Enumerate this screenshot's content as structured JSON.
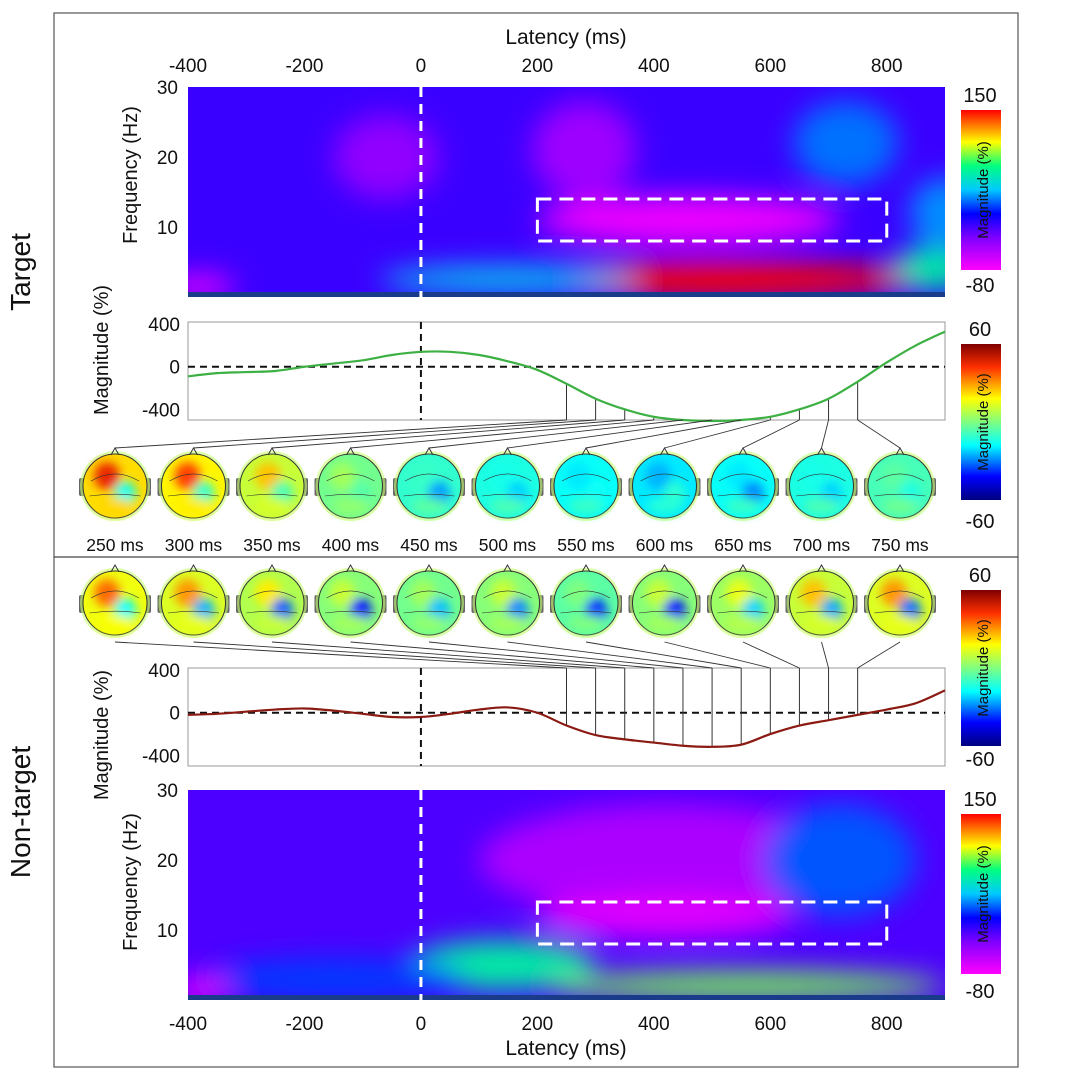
{
  "panels": {
    "target": {
      "label": "Target",
      "label_color": "#111111"
    },
    "nontarget": {
      "label": "Non-target",
      "label_color": "#111111"
    }
  },
  "chart_data": [
    {
      "id": "target-spectrogram",
      "type": "heatmap",
      "title": "",
      "xlabel": "Latency (ms)",
      "ylabel": "Frequency (Hz)",
      "xlim": [
        -400,
        900
      ],
      "ylim": [
        0,
        30
      ],
      "xticks": [
        -400,
        -200,
        0,
        200,
        400,
        600,
        800
      ],
      "yticks": [
        10,
        20,
        30
      ],
      "colorbar": {
        "label": "Magnitude (%)",
        "max_label": "150",
        "min_label": "-80",
        "range": [
          -80,
          150
        ]
      },
      "vline_at": 0,
      "roi": {
        "x": [
          200,
          800
        ],
        "y": [
          8,
          14
        ]
      },
      "blobs": [
        {
          "x": -60,
          "y": 20,
          "rx": 90,
          "ry": 6,
          "v": -40
        },
        {
          "x": 280,
          "y": 21,
          "rx": 90,
          "ry": 7,
          "v": -45
        },
        {
          "x": 460,
          "y": 11,
          "rx": 260,
          "ry": 3.5,
          "v": -75
        },
        {
          "x": 520,
          "y": 2.5,
          "rx": 330,
          "ry": 2.5,
          "v": 150
        },
        {
          "x": 150,
          "y": 2.5,
          "rx": 220,
          "ry": 1.8,
          "v": 40
        },
        {
          "x": -380,
          "y": 1.5,
          "rx": 60,
          "ry": 1.5,
          "v": -80
        },
        {
          "x": 730,
          "y": 22,
          "rx": 90,
          "ry": 6,
          "v": 20
        },
        {
          "x": 900,
          "y": 12,
          "rx": 60,
          "ry": 5,
          "v": 25
        },
        {
          "x": 880,
          "y": 4,
          "rx": 70,
          "ry": 3,
          "v": 60
        }
      ],
      "background_value": -15
    },
    {
      "id": "target-magnitude",
      "type": "line",
      "xlabel": "",
      "ylabel": "Magnitude (%)",
      "xlim": [
        -400,
        900
      ],
      "ylim": [
        -500,
        420
      ],
      "yticks": [
        400,
        0,
        -400
      ],
      "series": [
        {
          "name": "Target",
          "color": "#3cb043",
          "x": [
            -400,
            -350,
            -300,
            -250,
            -200,
            -150,
            -100,
            -50,
            0,
            50,
            100,
            150,
            200,
            250,
            300,
            350,
            400,
            450,
            500,
            550,
            600,
            650,
            700,
            750,
            800,
            850,
            900
          ],
          "y": [
            -90,
            -60,
            -50,
            -40,
            0,
            30,
            60,
            110,
            140,
            140,
            110,
            50,
            -30,
            -160,
            -300,
            -400,
            -470,
            -500,
            -510,
            -500,
            -470,
            -400,
            -300,
            -140,
            40,
            200,
            330
          ]
        }
      ],
      "marker_latencies": [
        250,
        300,
        350,
        400,
        450,
        500,
        550,
        600,
        650,
        700,
        750
      ],
      "colorbar": {
        "label": "Magnitude (%)",
        "max_label": "60",
        "min_label": "-60",
        "range": [
          -60,
          60
        ]
      }
    },
    {
      "id": "nontarget-magnitude",
      "type": "line",
      "xlabel": "",
      "ylabel": "Magnitude (%)",
      "xlim": [
        -400,
        900
      ],
      "ylim": [
        -500,
        420
      ],
      "yticks": [
        400,
        0,
        -400
      ],
      "series": [
        {
          "name": "Non-target",
          "color": "#8b1a12",
          "x": [
            -400,
            -350,
            -300,
            -250,
            -200,
            -150,
            -100,
            -50,
            0,
            50,
            100,
            150,
            200,
            250,
            300,
            350,
            400,
            450,
            500,
            550,
            600,
            650,
            700,
            750,
            800,
            850,
            900
          ],
          "y": [
            -20,
            -10,
            10,
            30,
            40,
            20,
            -10,
            -40,
            -40,
            -10,
            30,
            50,
            0,
            -120,
            -210,
            -250,
            -280,
            -310,
            -320,
            -300,
            -200,
            -120,
            -70,
            -20,
            30,
            90,
            210
          ]
        }
      ],
      "marker_latencies": [
        250,
        300,
        350,
        400,
        450,
        500,
        550,
        600,
        650,
        700,
        750
      ],
      "colorbar": {
        "label": "Magnitude (%)",
        "max_label": "60",
        "min_label": "-60",
        "range": [
          -60,
          60
        ]
      }
    },
    {
      "id": "nontarget-spectrogram",
      "type": "heatmap",
      "title": "",
      "xlabel": "Latency (ms)",
      "ylabel": "Frequency (Hz)",
      "xlim": [
        -400,
        900
      ],
      "ylim": [
        0,
        30
      ],
      "xticks": [
        -400,
        -200,
        0,
        200,
        400,
        600,
        800
      ],
      "yticks": [
        10,
        20,
        30
      ],
      "colorbar": {
        "label": "Magnitude (%)",
        "max_label": "150",
        "min_label": "-80",
        "range": [
          -80,
          150
        ]
      },
      "vline_at": 0,
      "roi": {
        "x": [
          200,
          800
        ],
        "y": [
          8,
          14
        ]
      },
      "blobs": [
        {
          "x": 420,
          "y": 20,
          "rx": 320,
          "ry": 8,
          "v": -50
        },
        {
          "x": 420,
          "y": 12,
          "rx": 220,
          "ry": 3,
          "v": -70
        },
        {
          "x": 140,
          "y": 5,
          "rx": 160,
          "ry": 3.5,
          "v": 60
        },
        {
          "x": 560,
          "y": 2,
          "rx": 340,
          "ry": 2,
          "v": 85
        },
        {
          "x": -150,
          "y": 3,
          "rx": 220,
          "ry": 3,
          "v": 10
        },
        {
          "x": -380,
          "y": 1.5,
          "rx": 50,
          "ry": 1.5,
          "v": -80
        },
        {
          "x": 720,
          "y": 20,
          "rx": 130,
          "ry": 8,
          "v": 15
        }
      ],
      "background_value": -20
    },
    {
      "id": "topomaps",
      "type": "table",
      "latency_labels": [
        "250 ms",
        "300 ms",
        "350 ms",
        "400 ms",
        "450 ms",
        "500 ms",
        "550 ms",
        "600 ms",
        "650 ms",
        "700 ms",
        "750 ms"
      ],
      "target_values": [
        45,
        40,
        25,
        5,
        -10,
        -15,
        -20,
        -25,
        -20,
        -15,
        -5
      ],
      "nontarget_values": [
        35,
        30,
        20,
        10,
        5,
        10,
        0,
        10,
        15,
        25,
        30
      ]
    }
  ]
}
